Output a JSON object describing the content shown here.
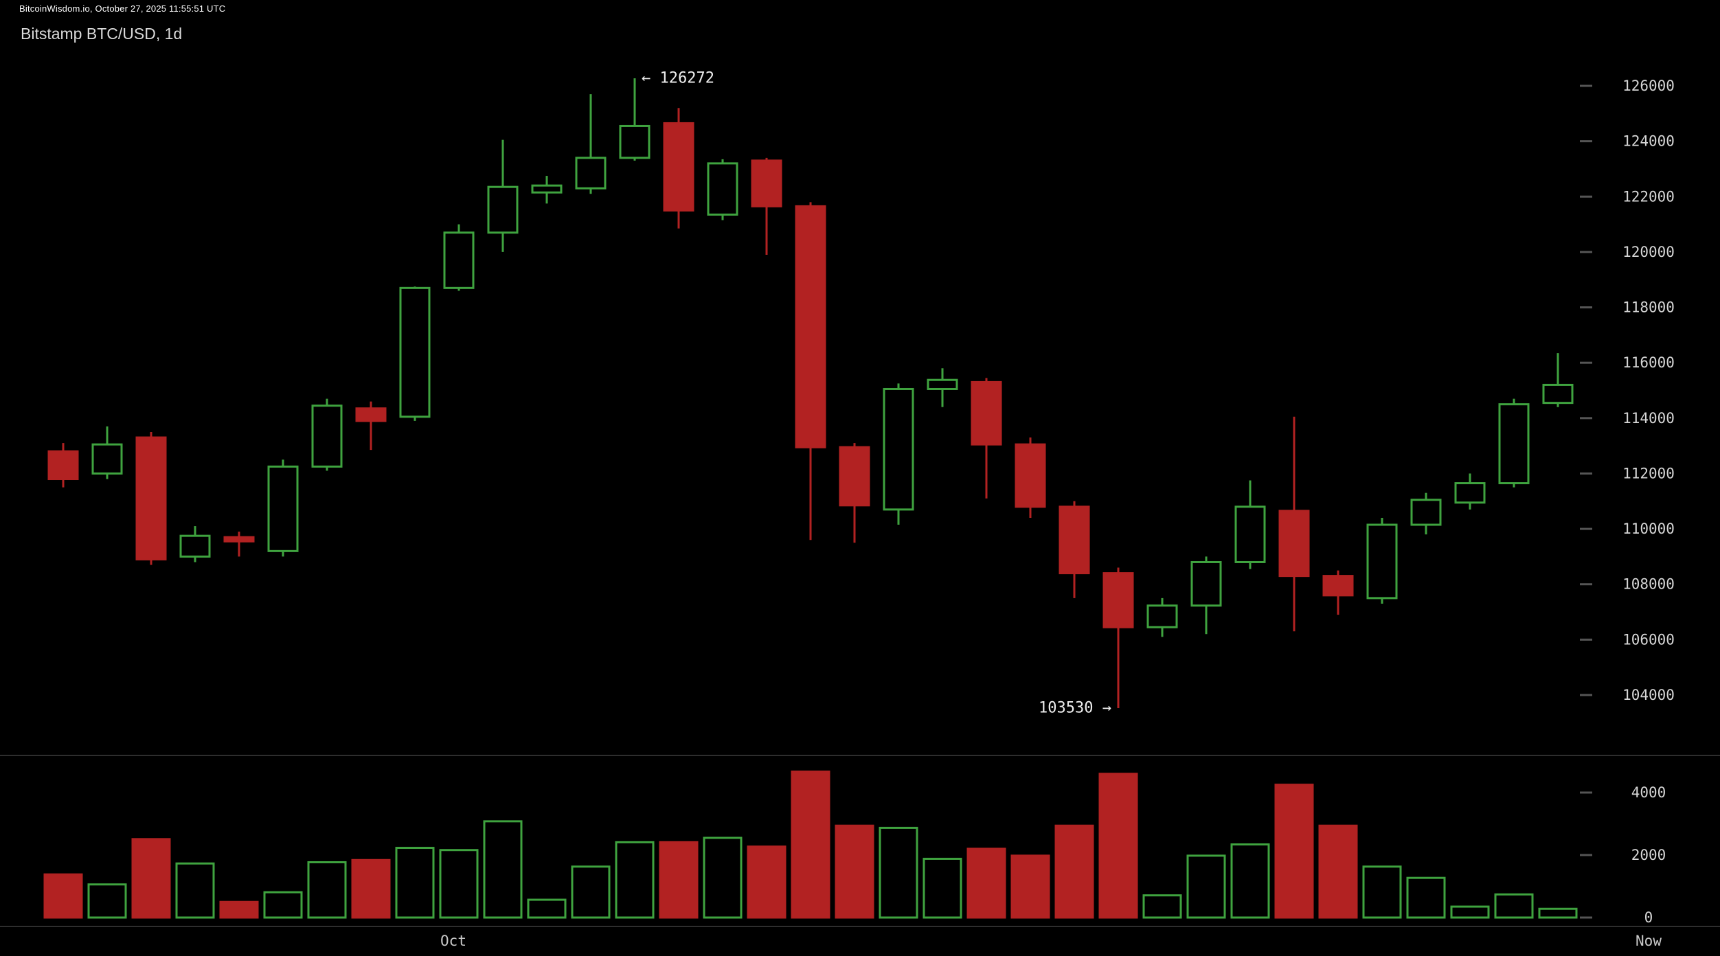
{
  "header": {
    "status_bar": "BitcoinWisdom.io, October 27, 2025 11:55:51 UTC",
    "title": "Bitstamp BTC/USD, 1d"
  },
  "colors": {
    "background": "#000000",
    "bull": "#3fa33f",
    "bear": "#b22222",
    "axis_text": "#d6d6d6",
    "tick_mark": "#555555",
    "annotation_text": "#eeeeee",
    "divider": "#2e2e2e"
  },
  "chart_data": {
    "type": "candlestick",
    "title": "Bitstamp BTC/USD, 1d",
    "interval": "1d",
    "legend_position": "none",
    "grid": "off",
    "price_axis": {
      "side": "right",
      "ticks": [
        126000,
        124000,
        122000,
        120000,
        118000,
        116000,
        114000,
        112000,
        110000,
        108000,
        106000,
        104000
      ]
    },
    "volume_axis": {
      "side": "right",
      "ticks": [
        4000,
        2000,
        0
      ]
    },
    "x_axis": {
      "month_label": "Oct",
      "now_label": "Now"
    },
    "annotations": {
      "high": {
        "text": "← 126272",
        "value": 126272,
        "candle_index": 13
      },
      "low": {
        "text": "103530 →",
        "value": 103530,
        "candle_index": 24
      }
    },
    "candle_format": [
      "open",
      "high",
      "low",
      "close",
      "volume"
    ],
    "candles": [
      [
        112800,
        113100,
        111500,
        111800,
        1380
      ],
      [
        112000,
        113700,
        111800,
        113050,
        1060
      ],
      [
        113300,
        113500,
        108700,
        108900,
        2510
      ],
      [
        109000,
        110100,
        108800,
        109750,
        1730
      ],
      [
        109700,
        109900,
        109000,
        109550,
        500
      ],
      [
        109200,
        112500,
        109000,
        112250,
        810
      ],
      [
        112250,
        114700,
        112100,
        114450,
        1770
      ],
      [
        114350,
        114600,
        112850,
        113900,
        1840
      ],
      [
        114050,
        118750,
        113900,
        118700,
        2230
      ],
      [
        118700,
        121000,
        118600,
        120700,
        2160
      ],
      [
        120700,
        124050,
        120000,
        122350,
        3080
      ],
      [
        122150,
        122750,
        121750,
        122400,
        570
      ],
      [
        122300,
        125700,
        122100,
        123400,
        1630
      ],
      [
        123400,
        126272,
        123300,
        124550,
        2410
      ],
      [
        124650,
        125200,
        120850,
        121500,
        2410
      ],
      [
        121350,
        123350,
        121150,
        123200,
        2550
      ],
      [
        123300,
        123400,
        119900,
        121650,
        2270
      ],
      [
        121650,
        121800,
        109600,
        112950,
        4670
      ],
      [
        112950,
        113100,
        109500,
        110850,
        2940
      ],
      [
        110700,
        115250,
        110150,
        115050,
        2870
      ],
      [
        115050,
        115800,
        114400,
        115380,
        1880
      ],
      [
        115300,
        115450,
        111100,
        113050,
        2200
      ],
      [
        113050,
        113300,
        110400,
        110800,
        1980
      ],
      [
        110800,
        111000,
        107500,
        108400,
        2940
      ],
      [
        108400,
        108600,
        103530,
        106450,
        4600
      ],
      [
        106450,
        107500,
        106100,
        107230,
        710
      ],
      [
        107230,
        109000,
        106200,
        108800,
        1980
      ],
      [
        108800,
        111750,
        108550,
        110800,
        2340
      ],
      [
        110650,
        114050,
        106300,
        108300,
        4250
      ],
      [
        108300,
        108500,
        106900,
        107600,
        2940
      ],
      [
        107500,
        110400,
        107300,
        110150,
        1630
      ],
      [
        110150,
        111300,
        109800,
        111050,
        1270
      ],
      [
        110950,
        112000,
        110700,
        111650,
        350
      ],
      [
        111650,
        114700,
        111500,
        114500,
        740
      ],
      [
        114550,
        116350,
        114400,
        115200,
        280
      ]
    ]
  }
}
